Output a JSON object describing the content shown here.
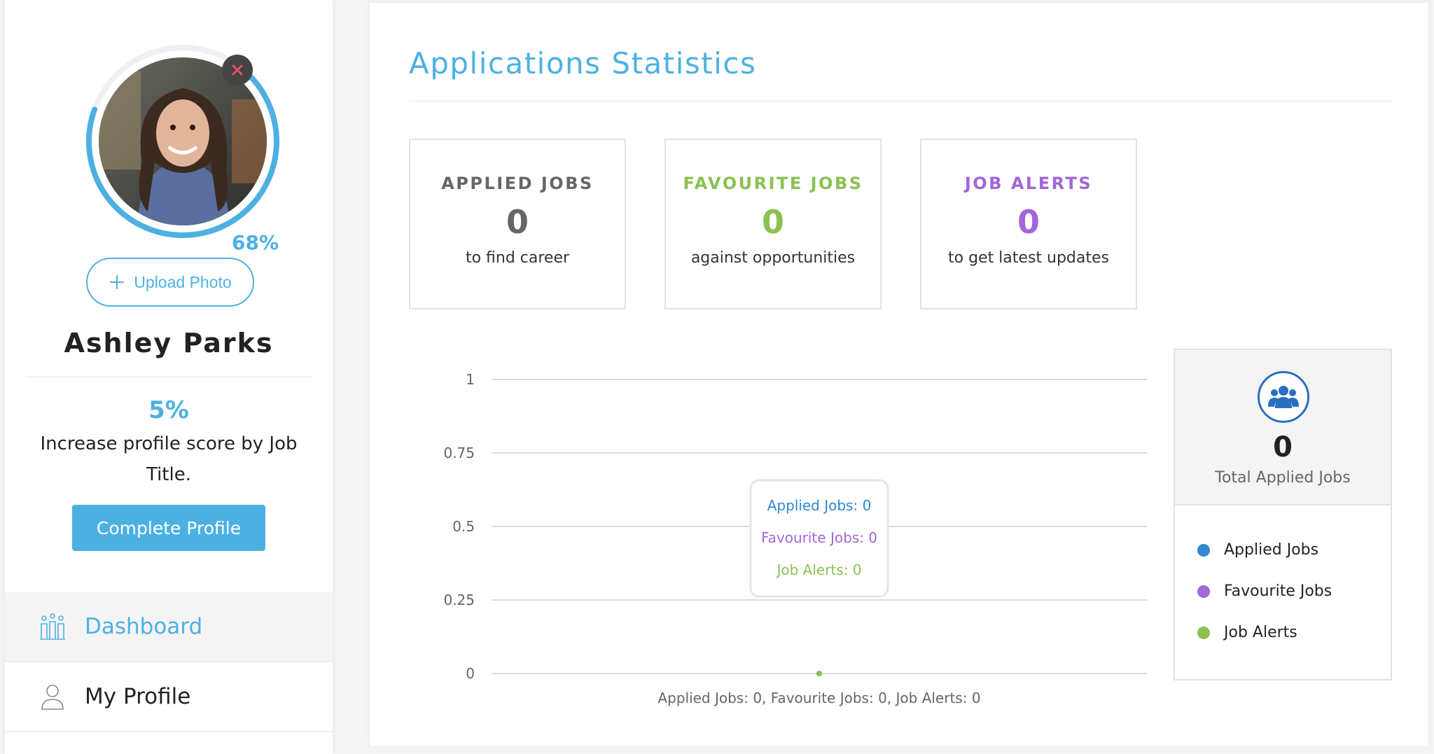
{
  "sidebar": {
    "profile_completion_label": "68%",
    "profile_completion": 0.68,
    "upload_label": "Upload Photo",
    "user_name": "Ashley Parks",
    "score_percent": "5%",
    "score_hint": "Increase profile score by Job Title.",
    "complete_label": "Complete Profile",
    "nav": [
      {
        "label": "Dashboard",
        "icon": "dashboard-icon",
        "active": true
      },
      {
        "label": "My Profile",
        "icon": "user-icon",
        "active": false
      }
    ]
  },
  "main": {
    "title": "Applications Statistics",
    "cards": [
      {
        "title": "APPLIED JOBS",
        "value": "0",
        "subtitle": "to find career",
        "color": "#666666"
      },
      {
        "title": "FAVOURITE JOBS",
        "value": "0",
        "subtitle": "against opportunities",
        "color": "#8cc152"
      },
      {
        "title": "JOB ALERTS",
        "value": "0",
        "subtitle": "to get latest updates",
        "color": "#a366d8"
      }
    ],
    "total": {
      "value": "0",
      "label": "Total Applied Jobs",
      "icon": "users-icon"
    },
    "legend": [
      {
        "label": "Applied Jobs",
        "color": "#2f88d0"
      },
      {
        "label": "Favourite Jobs",
        "color": "#a366d8"
      },
      {
        "label": "Job Alerts",
        "color": "#8cc152"
      }
    ]
  },
  "chart_data": {
    "type": "line",
    "categories": [
      "Applied Jobs: 0, Favourite Jobs: 0, Job Alerts: 0"
    ],
    "series": [
      {
        "name": "Applied Jobs",
        "values": [
          0
        ],
        "color": "#2f88d0"
      },
      {
        "name": "Favourite Jobs",
        "values": [
          0
        ],
        "color": "#a366d8"
      },
      {
        "name": "Job Alerts",
        "values": [
          0
        ],
        "color": "#8cc152"
      }
    ],
    "ylim": [
      0,
      1
    ],
    "yticks": [
      "0",
      "0.25",
      "0.5",
      "0.75",
      "1"
    ],
    "grid": true,
    "tooltip": [
      "Applied Jobs: 0",
      "Favourite Jobs: 0",
      "Job Alerts: 0"
    ]
  }
}
